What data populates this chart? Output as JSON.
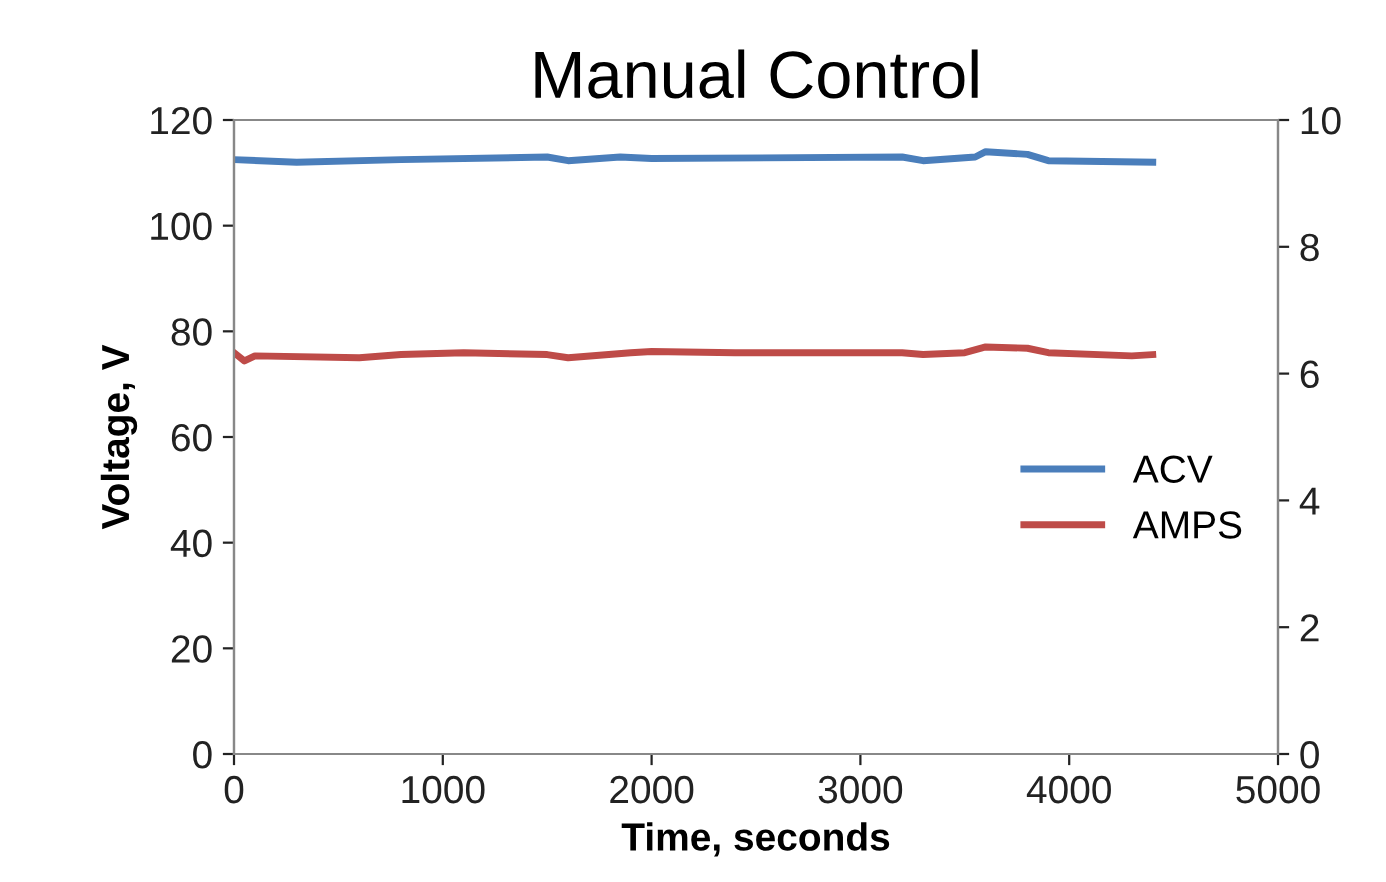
{
  "chart_data": {
    "type": "line",
    "title": "Manual Control",
    "xlabel": "Time, seconds",
    "ylabel": "Voltage, V",
    "xlim": [
      0,
      5000
    ],
    "xticks": [
      0,
      1000,
      2000,
      3000,
      4000,
      5000
    ],
    "ylim": [
      0,
      120
    ],
    "yticks": [
      0,
      20,
      40,
      60,
      80,
      100,
      120
    ],
    "y2lim": [
      0,
      10
    ],
    "y2ticks": [
      0,
      2,
      4,
      6,
      8,
      10
    ],
    "grid": false,
    "legend": "right",
    "marker": "none",
    "line_style": "solid",
    "series": [
      {
        "name": "ACV",
        "color": "#4a7ebb",
        "x": [
          0,
          300,
          800,
          1500,
          1600,
          1850,
          2000,
          3200,
          3300,
          3550,
          3600,
          3800,
          3900,
          4400
        ],
        "values": [
          112.5,
          112,
          112.5,
          113,
          112.3,
          113,
          112.7,
          113,
          112.3,
          113,
          114,
          113.5,
          112.3,
          112
        ]
      },
      {
        "name": "AMPS",
        "color": "#be4b48",
        "axis": "y2",
        "x": [
          0,
          50,
          100,
          600,
          800,
          1100,
          1500,
          1600,
          1900,
          2000,
          2400,
          3200,
          3300,
          3500,
          3600,
          3800,
          3900,
          4300,
          4400
        ],
        "values": [
          6.33,
          6.2,
          6.28,
          6.25,
          6.3,
          6.33,
          6.3,
          6.25,
          6.33,
          6.35,
          6.33,
          6.33,
          6.3,
          6.33,
          6.42,
          6.4,
          6.33,
          6.28,
          6.3
        ]
      }
    ]
  }
}
